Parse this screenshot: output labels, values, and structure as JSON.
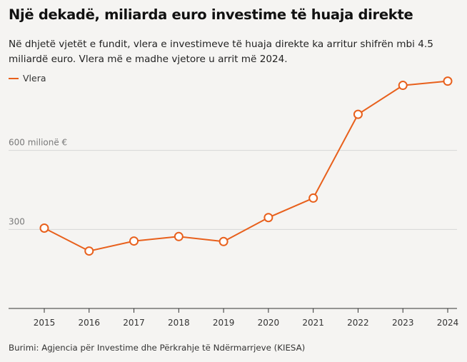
{
  "title": "Një dekadë, miliarda euro investime të huaja direkte",
  "subtitle": "Në dhjetë vjetët e fundit, vlera e investimeve të huaja direkte ka arritur shifrën mbi 4.5 miliardë euro. Vlera më e madhe vjetore u arrit më 2024.",
  "source": "Burimi: Agjencia për Investime dhe Përkrahje të Ndërmarrjeve (KIESA)",
  "colors": {
    "line": "#e8601c",
    "grid": "#d6d6d6",
    "axis": "#333333",
    "background": "#f5f4f2"
  },
  "chart_data": {
    "type": "line",
    "x": [
      "2015",
      "2016",
      "2017",
      "2018",
      "2019",
      "2020",
      "2021",
      "2022",
      "2023",
      "2024"
    ],
    "series": [
      {
        "name": "Vlera",
        "values": [
          305,
          218,
          256,
          273,
          254,
          345,
          419,
          737,
          847,
          863
        ]
      }
    ],
    "y_ticks": [
      {
        "value": 300,
        "label": "300"
      },
      {
        "value": 600,
        "label": "600 milionë €"
      }
    ],
    "ylim": [
      0,
      900
    ],
    "legend": "top-left",
    "grid": true
  }
}
